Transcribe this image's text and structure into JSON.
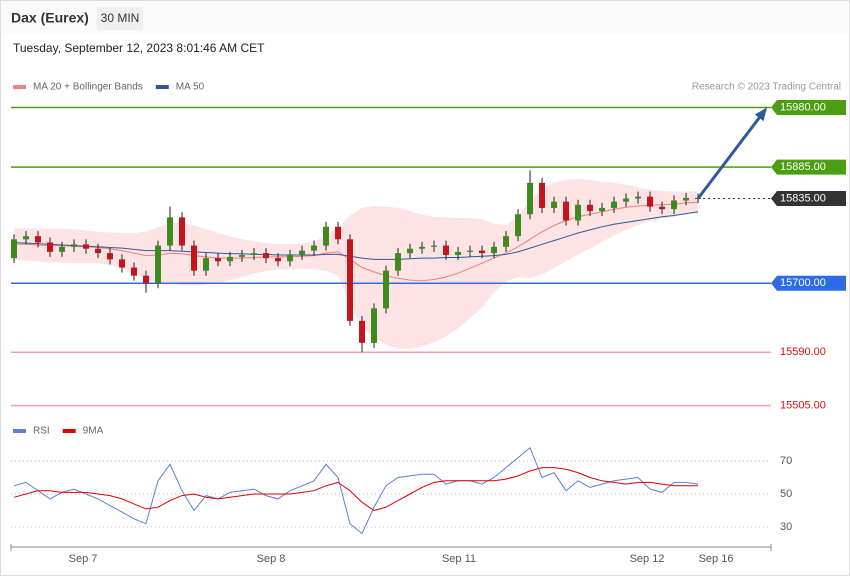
{
  "chart_data": {
    "type": "candlestick",
    "title": "Dax (Eurex)",
    "timeframe": "30 MIN",
    "subtitle": "Tuesday, September 12, 2023 8:01:46 AM CET",
    "source": "Research © 2023 Trading Central",
    "up_color": "#3d8b1f",
    "down_color": "#c3151b",
    "ylim": [
      15490,
      16000
    ],
    "xlim": [
      -0.25,
      63.08
    ],
    "xticks": [
      {
        "value": 5.75,
        "label": "Sep 7"
      },
      {
        "value": 21.42,
        "label": "Sep 8"
      },
      {
        "value": 37.08,
        "label": "Sep 11"
      },
      {
        "value": 52.75,
        "label": "Sep 12"
      },
      {
        "value": 58.5,
        "label": "Sep 16"
      }
    ],
    "open": [
      15740,
      15770,
      15775,
      15765,
      15750,
      15758,
      15762,
      15755,
      15748,
      15738,
      15725,
      15712,
      15700,
      15760,
      15805,
      15760,
      15720,
      15740,
      15735,
      15742,
      15745,
      15748,
      15740,
      15735,
      15745,
      15752,
      15760,
      15790,
      15770,
      15640,
      15605,
      15660,
      15720,
      15748,
      15755,
      15758,
      15760,
      15745,
      15750,
      15752,
      15748,
      15758,
      15775,
      15810,
      15860,
      15820,
      15830,
      15800,
      15825,
      15815,
      15820,
      15830,
      15835,
      15838,
      15822,
      15818,
      15832,
      15836
    ],
    "high": [
      15778,
      15783,
      15783,
      15773,
      15766,
      15770,
      15770,
      15763,
      15756,
      15746,
      15733,
      15720,
      15768,
      15822,
      15813,
      15768,
      15748,
      15748,
      15750,
      15753,
      15756,
      15756,
      15748,
      15753,
      15760,
      15768,
      15798,
      15798,
      15778,
      15648,
      15668,
      15728,
      15756,
      15763,
      15766,
      15768,
      15768,
      15758,
      15760,
      15760,
      15766,
      15783,
      15818,
      15880,
      15868,
      15838,
      15838,
      15833,
      15833,
      15828,
      15838,
      15843,
      15846,
      15846,
      15830,
      15840,
      15844,
      15843
    ],
    "low": [
      15732,
      15762,
      15757,
      15742,
      15742,
      15750,
      15747,
      15740,
      15730,
      15717,
      15704,
      15685,
      15692,
      15752,
      15752,
      15712,
      15712,
      15727,
      15727,
      15734,
      15737,
      15732,
      15727,
      15727,
      15737,
      15744,
      15752,
      15762,
      15632,
      15590,
      15597,
      15652,
      15712,
      15740,
      15747,
      15750,
      15737,
      15737,
      15742,
      15740,
      15740,
      15750,
      15767,
      15802,
      15812,
      15812,
      15792,
      15792,
      15807,
      15807,
      15812,
      15822,
      15827,
      15814,
      15810,
      15810,
      15824,
      15828
    ],
    "close": [
      15770,
      15775,
      15765,
      15750,
      15758,
      15762,
      15755,
      15748,
      15738,
      15725,
      15712,
      15700,
      15760,
      15805,
      15760,
      15720,
      15740,
      15735,
      15742,
      15745,
      15748,
      15740,
      15735,
      15745,
      15752,
      15760,
      15790,
      15770,
      15640,
      15605,
      15660,
      15720,
      15748,
      15755,
      15758,
      15760,
      15745,
      15750,
      15752,
      15748,
      15758,
      15775,
      15810,
      15860,
      15820,
      15830,
      15800,
      15825,
      15815,
      15820,
      15830,
      15835,
      15838,
      15822,
      15818,
      15832,
      15836,
      15835
    ],
    "series": [
      {
        "name": "MA 20 + Bollinger Bands",
        "color": "#f07f7f",
        "band_color": "#fde3e3",
        "values": [
          15762,
          15762,
          15761,
          15760,
          15760,
          15759,
          15758,
          15757,
          15755,
          15752,
          15748,
          15744,
          15745,
          15748,
          15747,
          15744,
          15742,
          15740,
          15740,
          15740,
          15741,
          15742,
          15742,
          15742,
          15743,
          15744,
          15748,
          15750,
          15738,
          15725,
          15718,
          15712,
          15708,
          15705,
          15704,
          15706,
          15710,
          15716,
          15724,
          15732,
          15740,
          15748,
          15758,
          15770,
          15782,
          15792,
          15800,
          15806,
          15810,
          15814,
          15818,
          15821,
          15823,
          15824,
          15825,
          15826,
          15828,
          15829
        ],
        "upper": [
          15787,
          15788,
          15787,
          15787,
          15787,
          15786,
          15784,
          15782,
          15781,
          15780,
          15780,
          15782,
          15789,
          15796,
          15797,
          15792,
          15786,
          15780,
          15775,
          15770,
          15767,
          15764,
          15762,
          15762,
          15763,
          15766,
          15776,
          15788,
          15808,
          15820,
          15823,
          15822,
          15820,
          15815,
          15809,
          15806,
          15805,
          15804,
          15804,
          15802,
          15795,
          15793,
          15806,
          15832,
          15850,
          15860,
          15865,
          15866,
          15865,
          15862,
          15860,
          15857,
          15853,
          15849,
          15847,
          15846,
          15846,
          15847
        ],
        "lower": [
          15737,
          15736,
          15735,
          15733,
          15733,
          15732,
          15732,
          15732,
          15729,
          15724,
          15716,
          15706,
          15701,
          15700,
          15697,
          15696,
          15698,
          15700,
          15705,
          15710,
          15715,
          15720,
          15722,
          15722,
          15723,
          15722,
          15720,
          15712,
          15668,
          15630,
          15613,
          15602,
          15596,
          15595,
          15599,
          15606,
          15615,
          15628,
          15644,
          15662,
          15685,
          15703,
          15710,
          15708,
          15714,
          15724,
          15735,
          15746,
          15755,
          15766,
          15776,
          15785,
          15793,
          15799,
          15803,
          15806,
          15810,
          15811
        ]
      },
      {
        "name": "MA 50",
        "color": "#2e5a9c",
        "values": [
          15765,
          15764,
          15763,
          15762,
          15761,
          15760,
          15759,
          15758,
          15757,
          15756,
          15754,
          15752,
          15752,
          15752,
          15751,
          15750,
          15749,
          15748,
          15747,
          15747,
          15746,
          15746,
          15745,
          15745,
          15745,
          15745,
          15746,
          15746,
          15743,
          15740,
          15738,
          15738,
          15738,
          15739,
          15740,
          15740,
          15741,
          15741,
          15742,
          15743,
          15744,
          15746,
          15750,
          15756,
          15762,
          15768,
          15774,
          15780,
          15785,
          15790,
          15794,
          15797,
          15800,
          15803,
          15806,
          15808,
          15811,
          15814
        ]
      }
    ],
    "levels": [
      {
        "value": 15980,
        "label": "15980.00",
        "color": "#4a9e10",
        "style": "solid",
        "box": true
      },
      {
        "value": 15885,
        "label": "15885.00",
        "color": "#4a9e10",
        "style": "solid",
        "box": true
      },
      {
        "value": 15835,
        "label": "15835.00",
        "color": "#333333",
        "style": "dotted",
        "box": true
      },
      {
        "value": 15700,
        "label": "15700.00",
        "color": "#2d6be6",
        "style": "solid",
        "box": true
      },
      {
        "value": 15590,
        "label": "15590.00",
        "color": "#f4a0a0",
        "text_color": "#e01010",
        "style": "solid",
        "box": false
      },
      {
        "value": 15505,
        "label": "15505.00",
        "color": "#f4a0a0",
        "text_color": "#e01010",
        "style": "solid",
        "box": false
      }
    ],
    "arrow_color": "#2e5a9c",
    "rsi": {
      "ylim": [
        20,
        80
      ],
      "yticks": [
        30,
        50,
        70
      ],
      "series": [
        {
          "name": "RSI",
          "color": "#5b7fd6",
          "values": [
            55,
            57,
            52,
            47,
            51,
            53,
            50,
            47,
            43,
            39,
            35,
            32,
            58,
            68,
            52,
            40,
            49,
            47,
            51,
            52,
            53,
            49,
            47,
            52,
            55,
            58,
            68,
            60,
            32,
            26,
            42,
            55,
            60,
            61,
            62,
            62,
            56,
            58,
            58,
            56,
            60,
            66,
            72,
            78,
            60,
            63,
            52,
            58,
            54,
            56,
            58,
            59,
            60,
            53,
            51,
            57,
            57,
            56
          ]
        },
        {
          "name": "9MA",
          "color": "#e00000",
          "values": [
            48,
            50,
            52,
            52,
            51,
            51,
            51,
            50,
            49,
            47,
            44,
            41,
            42,
            46,
            49,
            50,
            48,
            47,
            48,
            49,
            50,
            50,
            50,
            50,
            51,
            52,
            55,
            57,
            52,
            45,
            40,
            42,
            46,
            50,
            54,
            57,
            58,
            58,
            58,
            58,
            58,
            59,
            61,
            64,
            66,
            66,
            65,
            63,
            60,
            58,
            57,
            56,
            57,
            57,
            56,
            55,
            55,
            55
          ]
        }
      ]
    }
  }
}
